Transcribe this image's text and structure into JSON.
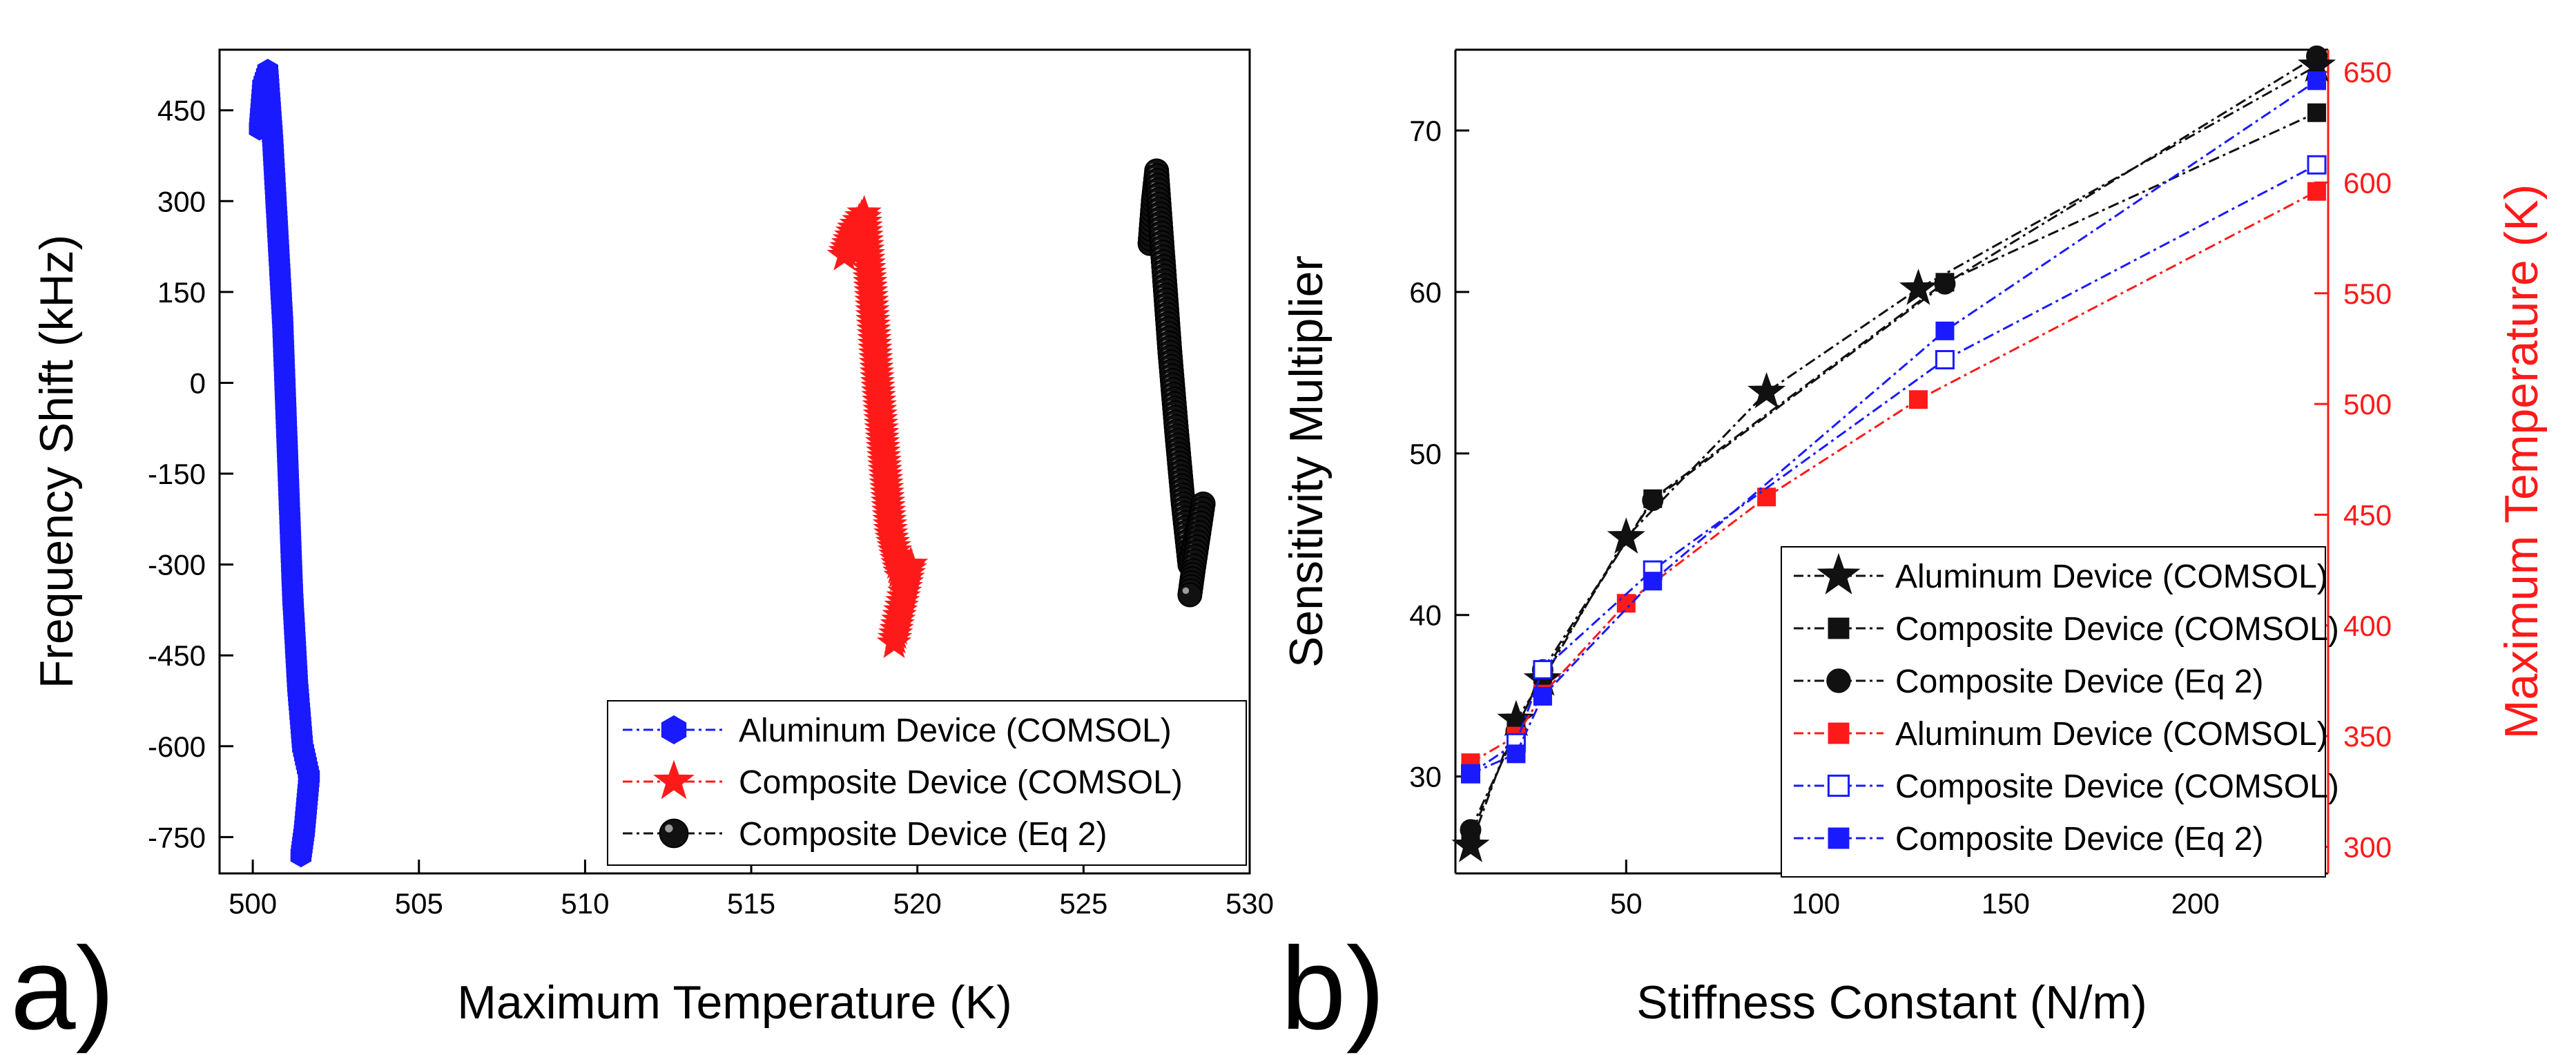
{
  "colors": {
    "blue": "#1a1aff",
    "red": "#ff1a1a",
    "black": "#111111",
    "axis": "#000000"
  },
  "chart_data": [
    {
      "panel_label": "a)",
      "type": "scatter",
      "xlabel": "Maximum Temperature (K)",
      "ylabel": "Frequency Shift (kHz)",
      "xlim": [
        499,
        530
      ],
      "ylim": [
        -810,
        550
      ],
      "xticks": [
        500,
        505,
        510,
        515,
        520,
        525,
        530
      ],
      "yticks": [
        -750,
        -600,
        -450,
        -300,
        -150,
        0,
        150,
        300,
        450
      ],
      "legend": {
        "position": "bottom-right",
        "entries": [
          "Aluminum Device (COMSOL)",
          "Composite Device (COMSOL)",
          "Composite Device (Eq 2)"
        ]
      },
      "series": [
        {
          "name": "Aluminum Device (COMSOL)",
          "color": "blue",
          "marker": "hexagon",
          "x": [
            500.2,
            500.3,
            500.45,
            500.6,
            500.75,
            500.9,
            501.0,
            501.1,
            501.2,
            501.35,
            501.5,
            501.7,
            501.55,
            501.45
          ],
          "y": [
            420,
            490,
            515,
            400,
            250,
            100,
            -50,
            -200,
            -350,
            -500,
            -600,
            -650,
            -740,
            -780
          ]
        },
        {
          "name": "Composite Device (COMSOL)",
          "color": "red",
          "marker": "star",
          "x": [
            517.8,
            518.1,
            518.4,
            518.6,
            518.8,
            519.0,
            519.2,
            519.5,
            519.8,
            519.4,
            519.3
          ],
          "y": [
            210,
            255,
            280,
            150,
            0,
            -130,
            -250,
            -320,
            -300,
            -400,
            -430
          ]
        },
        {
          "name": "Composite Device (Eq 2)",
          "color": "black",
          "marker": "sphere",
          "x": [
            527.0,
            527.1,
            527.2,
            527.4,
            527.6,
            527.8,
            528.0,
            528.2,
            528.6,
            528.3,
            528.2
          ],
          "y": [
            230,
            300,
            350,
            200,
            50,
            -80,
            -200,
            -300,
            -200,
            -310,
            -350
          ]
        }
      ]
    },
    {
      "panel_label": "b)",
      "type": "line",
      "xlabel": "Stiffness Constant (N/m)",
      "ylabel": "Sensitivity Multiplier",
      "y2label": "Maximum Temperature (K)",
      "xlim": [
        5,
        235
      ],
      "ylim": [
        24,
        75
      ],
      "y2lim": [
        288,
        660
      ],
      "xticks": [
        50,
        100,
        150,
        200
      ],
      "yticks": [
        30,
        40,
        50,
        60,
        70
      ],
      "y2ticks": [
        300,
        350,
        400,
        450,
        500,
        550,
        600,
        650
      ],
      "legend": {
        "position": "bottom-right",
        "entries": [
          "Aluminum Device  (COMSOL)",
          "Composite Device (COMSOL)",
          "Composite Device (Eq 2)",
          "Aluminum Device  (COMSOL)",
          "Composite Device (COMSOL)",
          "Composite Device (Eq 2)"
        ]
      },
      "series": [
        {
          "name": "Aluminum Device  (COMSOL)",
          "axis": "left",
          "color": "black",
          "marker": "star",
          "x": [
            9,
            21,
            28,
            50,
            87,
            127,
            232
          ],
          "y": [
            25.7,
            33.5,
            36.0,
            44.8,
            53.8,
            60.2,
            74.0
          ]
        },
        {
          "name": "Composite Device (COMSOL)",
          "axis": "left",
          "color": "black",
          "marker": "square",
          "x": [
            9,
            21,
            28,
            57,
            134,
            232
          ],
          "y": [
            26.3,
            33.0,
            36.3,
            47.2,
            60.6,
            71.1
          ]
        },
        {
          "name": "Composite Device (Eq 2)",
          "axis": "left",
          "color": "black",
          "marker": "circle",
          "x": [
            9,
            21,
            28,
            57,
            134,
            232
          ],
          "y": [
            26.7,
            32.8,
            36.6,
            47.1,
            60.5,
            74.6
          ]
        },
        {
          "name": "Aluminum Device  (COMSOL)",
          "axis": "right",
          "color": "red",
          "marker": "square",
          "x": [
            9,
            21,
            28,
            50,
            87,
            127,
            232
          ],
          "y": [
            338,
            350,
            369,
            410,
            458,
            502,
            596
          ]
        },
        {
          "name": "Composite Device (COMSOL)",
          "axis": "right",
          "color": "blue",
          "marker": "open-square",
          "x": [
            9,
            21,
            28,
            57,
            134,
            232
          ],
          "y": [
            333,
            347,
            380,
            425,
            520,
            608
          ]
        },
        {
          "name": "Composite Device (Eq 2)",
          "axis": "right",
          "color": "blue",
          "marker": "square",
          "x": [
            9,
            21,
            28,
            57,
            134,
            232
          ],
          "y": [
            333,
            342,
            368,
            420,
            533,
            646
          ]
        }
      ]
    }
  ]
}
